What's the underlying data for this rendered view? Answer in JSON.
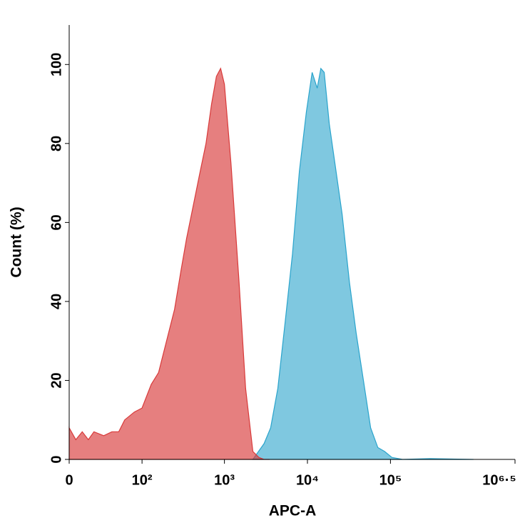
{
  "chart_data": {
    "type": "area",
    "xlabel": "APC-A",
    "ylabel": "Count (%)",
    "xscale": "asinh",
    "xlim": [
      0,
      3162278
    ],
    "xticks": [
      0,
      {
        "value": 100,
        "label": "10²"
      },
      {
        "value": 1000,
        "label": "10³"
      },
      {
        "value": 10000,
        "label": "10⁴"
      },
      {
        "value": 100000,
        "label": "10⁵"
      },
      {
        "value": 3162278,
        "label": "10⁶·⁵"
      }
    ],
    "ylim": [
      0,
      110
    ],
    "yticks": [
      0,
      20,
      40,
      60,
      80,
      100
    ],
    "series": [
      {
        "color": "#2aa4cc",
        "x": [
          2200,
          3000,
          3600,
          4400,
          5400,
          6600,
          8000,
          9700,
          11400,
          13100,
          14500,
          15900,
          18300,
          21400,
          26200,
          32000,
          38600,
          47200,
          57700,
          70500,
          85000,
          104000,
          140000,
          300000,
          1000000
        ],
        "values": [
          0,
          4,
          8,
          18,
          35,
          52,
          73,
          88,
          98,
          94,
          99,
          98,
          85,
          75,
          62,
          45,
          32,
          20,
          8,
          3,
          2,
          0.5,
          0,
          0.2,
          0
        ]
      },
      {
        "color": "#d83a3a",
        "x": [
          0,
          5,
          10,
          15,
          20,
          30,
          40,
          50,
          60,
          80,
          100,
          130,
          160,
          200,
          250,
          300,
          350,
          400,
          500,
          600,
          700,
          800,
          900,
          1000,
          1200,
          1500,
          1800,
          2200,
          2600,
          3000,
          3500
        ],
        "values": [
          8,
          5,
          7,
          5,
          7,
          6,
          7,
          7,
          10,
          12,
          13,
          19,
          22,
          30,
          38,
          48,
          56,
          62,
          72,
          80,
          90,
          97,
          99,
          95,
          75,
          45,
          18,
          2,
          0.5,
          0,
          0
        ]
      }
    ]
  }
}
